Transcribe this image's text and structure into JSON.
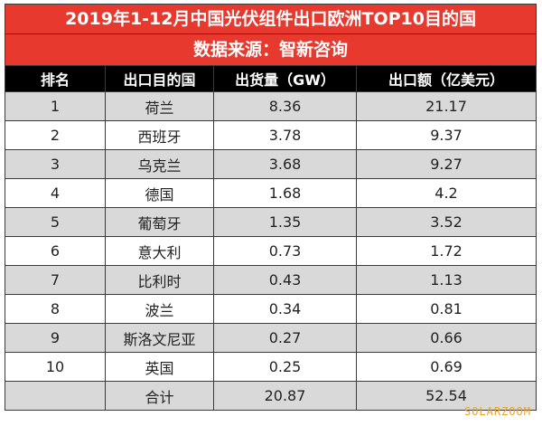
{
  "title_line1": "2019年1-12月中国光伏组件出口欧洲TOP10目的国",
  "title_line2": "数据来源：智新咨询",
  "headers": [
    "排名",
    "出口目的国",
    "出货量（GW）",
    "出口额（亿美元）"
  ],
  "rows": [
    [
      "1",
      "荷兰",
      "8.36",
      "21.17"
    ],
    [
      "2",
      "西班牙",
      "3.78",
      "9.37"
    ],
    [
      "3",
      "乌克兰",
      "3.68",
      "9.27"
    ],
    [
      "4",
      "德国",
      "1.68",
      "4.2"
    ],
    [
      "5",
      "葡萄牙",
      "1.35",
      "3.52"
    ],
    [
      "6",
      "意大利",
      "0.73",
      "1.72"
    ],
    [
      "7",
      "比利时",
      "0.43",
      "1.13"
    ],
    [
      "8",
      "波兰",
      "0.34",
      "0.81"
    ],
    [
      "9",
      "斯洛文尼亚",
      "0.27",
      "0.66"
    ],
    [
      "10",
      "英国",
      "0.25",
      "0.69"
    ],
    [
      "",
      "合计",
      "20.87",
      "52.54"
    ]
  ],
  "watermark": "SOLARZOOM",
  "colors": {
    "title_bg": "#e8392e",
    "header_bg": "#000000",
    "alt_row": "#d9d9d9"
  }
}
